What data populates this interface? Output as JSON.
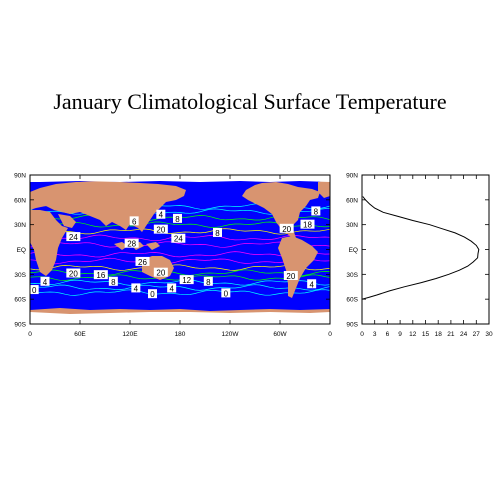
{
  "title": "January Climatological Surface Temperature",
  "chart_data": [
    {
      "type": "heatmap",
      "subtype": "filled-contour-map",
      "projection": "cylindrical equidistant",
      "x_ticks": [
        "0",
        "60E",
        "120E",
        "180",
        "120W",
        "60W",
        "0"
      ],
      "y_ticks": [
        "90S",
        "60S",
        "30S",
        "EQ",
        "30N",
        "60N",
        "90N"
      ],
      "xlim": [
        0,
        360
      ],
      "ylim": [
        -90,
        90
      ],
      "colors": {
        "ocean": "#0000ff",
        "land": "#d89470",
        "ice": "#ffffff",
        "contour_cold": "#00ffff",
        "contour_mid": "#00ff00",
        "contour_warm": "#ff00ff"
      },
      "contour_labels": [
        {
          "text": "8",
          "lon": 225,
          "lat": 20
        },
        {
          "text": "6",
          "lon": 125,
          "lat": 34
        },
        {
          "text": "4",
          "lon": 157,
          "lat": 42
        },
        {
          "text": "8",
          "lon": 177,
          "lat": 37
        },
        {
          "text": "8",
          "lon": 343,
          "lat": 46
        },
        {
          "text": "18",
          "lon": 333,
          "lat": 30
        },
        {
          "text": "20",
          "lon": 308,
          "lat": 25
        },
        {
          "text": "20",
          "lon": 157,
          "lat": 24
        },
        {
          "text": "24",
          "lon": 178,
          "lat": 13
        },
        {
          "text": "24",
          "lon": 52,
          "lat": 15
        },
        {
          "text": "28",
          "lon": 122,
          "lat": 7
        },
        {
          "text": "26",
          "lon": 135,
          "lat": -15
        },
        {
          "text": "20",
          "lon": 52,
          "lat": -29
        },
        {
          "text": "16",
          "lon": 85,
          "lat": -31
        },
        {
          "text": "20",
          "lon": 157,
          "lat": -28
        },
        {
          "text": "20",
          "lon": 313,
          "lat": -32
        },
        {
          "text": "4",
          "lon": 18,
          "lat": -39
        },
        {
          "text": "8",
          "lon": 100,
          "lat": -39
        },
        {
          "text": "12",
          "lon": 188,
          "lat": -37
        },
        {
          "text": "8",
          "lon": 214,
          "lat": -39
        },
        {
          "text": "4",
          "lon": 338,
          "lat": -42
        },
        {
          "text": "4",
          "lon": 127,
          "lat": -47
        },
        {
          "text": "4",
          "lon": 170,
          "lat": -47
        },
        {
          "text": "0",
          "lon": 147,
          "lat": -54
        },
        {
          "text": "0",
          "lon": 235,
          "lat": -53
        },
        {
          "text": "0",
          "lon": 5,
          "lat": -49
        }
      ]
    },
    {
      "type": "line",
      "name": "zonal-mean",
      "xlim": [
        0,
        30
      ],
      "ylim": [
        -90,
        90
      ],
      "x_ticks": [
        "0",
        "3",
        "6",
        "9",
        "12",
        "15",
        "18",
        "21",
        "24",
        "27",
        "30"
      ],
      "y_ticks": [
        "90S",
        "60S",
        "30S",
        "EQ",
        "30N",
        "60N",
        "90N"
      ],
      "points": [
        {
          "t": 0.0,
          "lat": -60
        },
        {
          "t": 1.5,
          "lat": -58
        },
        {
          "t": 3.5,
          "lat": -55
        },
        {
          "t": 6.5,
          "lat": -50
        },
        {
          "t": 10,
          "lat": -45
        },
        {
          "t": 14,
          "lat": -40
        },
        {
          "t": 17.5,
          "lat": -35
        },
        {
          "t": 20.5,
          "lat": -30
        },
        {
          "t": 23,
          "lat": -25
        },
        {
          "t": 25,
          "lat": -20
        },
        {
          "t": 26.3,
          "lat": -15
        },
        {
          "t": 27.3,
          "lat": -10
        },
        {
          "t": 27.4,
          "lat": -5
        },
        {
          "t": 27.6,
          "lat": 0
        },
        {
          "t": 27.0,
          "lat": 5
        },
        {
          "t": 25.8,
          "lat": 10
        },
        {
          "t": 24.2,
          "lat": 15
        },
        {
          "t": 22,
          "lat": 20
        },
        {
          "t": 19,
          "lat": 25
        },
        {
          "t": 16,
          "lat": 30
        },
        {
          "t": 12,
          "lat": 35
        },
        {
          "t": 8.5,
          "lat": 40
        },
        {
          "t": 5,
          "lat": 45
        },
        {
          "t": 3,
          "lat": 50
        },
        {
          "t": 1.8,
          "lat": 55
        },
        {
          "t": 0.8,
          "lat": 60
        },
        {
          "t": 0.2,
          "lat": 64
        }
      ]
    }
  ]
}
